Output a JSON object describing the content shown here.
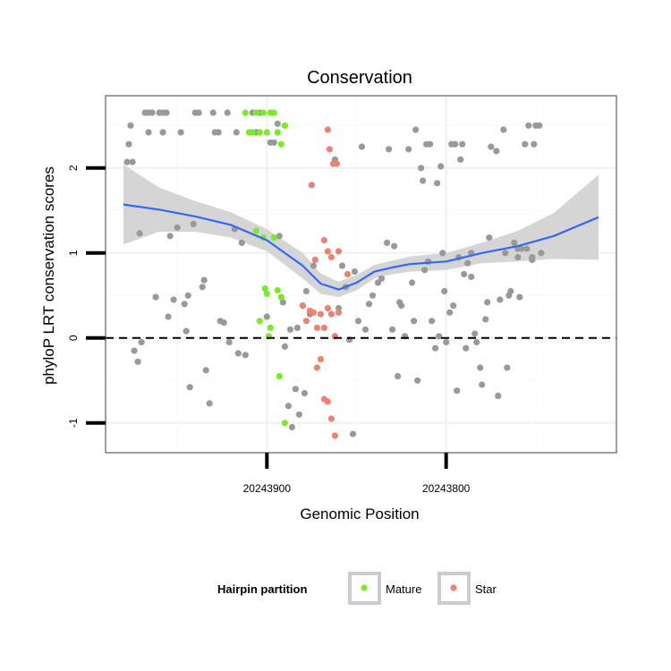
{
  "chart_data": {
    "type": "scatter",
    "title": "Conservation",
    "xlabel": "Genomic Position",
    "ylabel": "phyloP LRT conservation scores",
    "x_reversed": true,
    "xlim": [
      20243990,
      20243705
    ],
    "ylim": [
      -1.35,
      2.85
    ],
    "x_ticks": [
      {
        "value": 20243900,
        "label": "20243900"
      },
      {
        "value": 20243800,
        "label": "20243800"
      }
    ],
    "y_ticks": [
      {
        "value": -1,
        "label": "-1"
      },
      {
        "value": 0,
        "label": "0"
      },
      {
        "value": 1,
        "label": "1"
      },
      {
        "value": 2,
        "label": "2"
      }
    ],
    "grid": true,
    "reference_line": {
      "y": 0,
      "style": "dashed"
    },
    "legend": {
      "title": "Hairpin partition",
      "position": "bottom",
      "entries": [
        {
          "label": "Mature",
          "color": "#77ee22"
        },
        {
          "label": "Star",
          "color": "#f08070"
        }
      ]
    },
    "colors": {
      "other": "#999999",
      "smooth_line": "#3366ff",
      "ribbon": "#d3d3d3"
    },
    "series": [
      {
        "group": "other",
        "points": [
          [
            20243978,
            2.07
          ],
          [
            20243977,
            2.28
          ],
          [
            20243976,
            2.5
          ],
          [
            20243975,
            2.07
          ],
          [
            20243974,
            -0.15
          ],
          [
            20243972,
            -0.28
          ],
          [
            20243970,
            -0.05
          ],
          [
            20243971,
            1.23
          ],
          [
            20243968,
            2.65
          ],
          [
            20243966,
            2.65
          ],
          [
            20243966,
            2.42
          ],
          [
            20243964,
            2.65
          ],
          [
            20243962,
            0.48
          ],
          [
            20243960,
            2.65
          ],
          [
            20243958,
            2.65
          ],
          [
            20243958,
            2.42
          ],
          [
            20243956,
            2.65
          ],
          [
            20243955,
            0.25
          ],
          [
            20243954,
            1.2
          ],
          [
            20243952,
            0.45
          ],
          [
            20243950,
            1.3
          ],
          [
            20243948,
            2.42
          ],
          [
            20243946,
            0.4
          ],
          [
            20243945,
            0.08
          ],
          [
            20243944,
            0.5
          ],
          [
            20243943,
            -0.58
          ],
          [
            20243941,
            1.34
          ],
          [
            20243940,
            2.65
          ],
          [
            20243938,
            2.65
          ],
          [
            20243936,
            0.6
          ],
          [
            20243935,
            0.68
          ],
          [
            20243934,
            -0.38
          ],
          [
            20243932,
            -0.77
          ],
          [
            20243930,
            2.65
          ],
          [
            20243929,
            2.42
          ],
          [
            20243927,
            2.42
          ],
          [
            20243926,
            0.2
          ],
          [
            20243924,
            0.18
          ],
          [
            20243922,
            2.65
          ],
          [
            20243921,
            -0.05
          ],
          [
            20243918,
            1.28
          ],
          [
            20243917,
            2.42
          ],
          [
            20243916,
            -0.18
          ],
          [
            20243914,
            1.12
          ],
          [
            20243912,
            -0.2
          ],
          [
            20243908,
            2.65
          ],
          [
            20243906,
            2.42
          ],
          [
            20243904,
            2.65
          ],
          [
            20243900,
            0.25
          ],
          [
            20243898,
            2.3
          ],
          [
            20243896,
            2.3
          ],
          [
            20243894,
            2.52
          ],
          [
            20243893,
            1.2
          ],
          [
            20243891,
            0.42
          ],
          [
            20243890,
            -0.1
          ],
          [
            20243888,
            -0.8
          ],
          [
            20243887,
            0.1
          ],
          [
            20243886,
            -1.05
          ],
          [
            20243884,
            -0.6
          ],
          [
            20243883,
            0.12
          ],
          [
            20243882,
            -0.9
          ],
          [
            20243880,
            0.38
          ],
          [
            20243879,
            -0.65
          ],
          [
            20243878,
            0.55
          ],
          [
            20243876,
            0.28
          ],
          [
            20243874,
            0.85
          ],
          [
            20243862,
            2.1
          ],
          [
            20243860,
            0.35
          ],
          [
            20243858,
            0.85
          ],
          [
            20243856,
            0.6
          ],
          [
            20243854,
            -0.02
          ],
          [
            20243852,
            -1.13
          ],
          [
            20243851,
            0.78
          ],
          [
            20243849,
            0.2
          ],
          [
            20243847,
            2.25
          ],
          [
            20243845,
            0.1
          ],
          [
            20243843,
            0.4
          ],
          [
            20243841,
            0.5
          ],
          [
            20243838,
            0.65
          ],
          [
            20243836,
            0.7
          ],
          [
            20243833,
            1.12
          ],
          [
            20243832,
            2.22
          ],
          [
            20243830,
            0.1
          ],
          [
            20243829,
            1.08
          ],
          [
            20243827,
            -0.45
          ],
          [
            20243826,
            0.42
          ],
          [
            20243825,
            0.38
          ],
          [
            20243823,
            0.02
          ],
          [
            20243821,
            2.22
          ],
          [
            20243819,
            0.65
          ],
          [
            20243818,
            0.2
          ],
          [
            20243817,
            2.45
          ],
          [
            20243816,
            -0.5
          ],
          [
            20243814,
            2.0
          ],
          [
            20243813,
            1.85
          ],
          [
            20243812,
            0.8
          ],
          [
            20243811,
            2.28
          ],
          [
            20243810,
            0.9
          ],
          [
            20243809,
            2.28
          ],
          [
            20243808,
            0.2
          ],
          [
            20243806,
            -0.12
          ],
          [
            20243805,
            1.82
          ],
          [
            20243804,
            0.02
          ],
          [
            20243803,
            2.02
          ],
          [
            20243802,
            1.0
          ],
          [
            20243801,
            0.55
          ],
          [
            20243800,
            -0.05
          ],
          [
            20243798,
            0.3
          ],
          [
            20243797,
            2.28
          ],
          [
            20243796,
            0.38
          ],
          [
            20243795,
            2.28
          ],
          [
            20243794,
            -0.62
          ],
          [
            20243793,
            0.95
          ],
          [
            20243792,
            2.1
          ],
          [
            20243791,
            2.28
          ],
          [
            20243790,
            0.75
          ],
          [
            20243789,
            -0.12
          ],
          [
            20243788,
            0.88
          ],
          [
            20243786,
            0.72
          ],
          [
            20243784,
            0.05
          ],
          [
            20243783,
            -0.05
          ],
          [
            20243781,
            -0.35
          ],
          [
            20243780,
            -0.55
          ],
          [
            20243778,
            0.22
          ],
          [
            20243777,
            0.42
          ],
          [
            20243775,
            2.25
          ],
          [
            20243772,
            2.2
          ],
          [
            20243771,
            -0.68
          ],
          [
            20243770,
            0.45
          ],
          [
            20243768,
            2.45
          ],
          [
            20243766,
            -0.35
          ],
          [
            20243765,
            0.5
          ],
          [
            20243764,
            0.55
          ],
          [
            20243762,
            1.12
          ],
          [
            20243760,
            0.95
          ],
          [
            20243759,
            0.48
          ],
          [
            20243758,
            1.05
          ],
          [
            20243756,
            2.28
          ],
          [
            20243755,
            1.05
          ],
          [
            20243754,
            2.5
          ],
          [
            20243752,
            0.95
          ],
          [
            20243751,
            2.28
          ],
          [
            20243750,
            2.5
          ],
          [
            20243748,
            2.5
          ],
          [
            20243747,
            1.0
          ],
          [
            20243760,
            1.05
          ],
          [
            20243752,
            0.92
          ],
          [
            20243786,
            1.0
          ],
          [
            20243776,
            1.18
          ],
          [
            20243767,
            1.0
          ]
        ]
      },
      {
        "group": "Mature",
        "points": [
          [
            20243912,
            2.65
          ],
          [
            20243910,
            2.42
          ],
          [
            20243908,
            2.42
          ],
          [
            20243906,
            2.65
          ],
          [
            20243904,
            2.42
          ],
          [
            20243902,
            2.65
          ],
          [
            20243900,
            2.42
          ],
          [
            20243898,
            2.65
          ],
          [
            20243896,
            2.65
          ],
          [
            20243894,
            2.42
          ],
          [
            20243892,
            2.28
          ],
          [
            20243890,
            2.5
          ],
          [
            20243906,
            1.26
          ],
          [
            20243904,
            0.2
          ],
          [
            20243902,
            1.18
          ],
          [
            20243901,
            0.58
          ],
          [
            20243900,
            0.52
          ],
          [
            20243899,
            0.02
          ],
          [
            20243898,
            0.12
          ],
          [
            20243896,
            1.18
          ],
          [
            20243894,
            0.56
          ],
          [
            20243892,
            0.48
          ],
          [
            20243893,
            -0.45
          ],
          [
            20243890,
            -1.0
          ]
        ]
      },
      {
        "group": "Star",
        "points": [
          [
            20243866,
            2.45
          ],
          [
            20243865,
            2.22
          ],
          [
            20243863,
            2.05
          ],
          [
            20243861,
            2.05
          ],
          [
            20243875,
            1.8
          ],
          [
            20243868,
            1.15
          ],
          [
            20243866,
            1.02
          ],
          [
            20243864,
            0.95
          ],
          [
            20243860,
            1.02
          ],
          [
            20243855,
            0.75
          ],
          [
            20243880,
            0.38
          ],
          [
            20243878,
            0.2
          ],
          [
            20243876,
            0.32
          ],
          [
            20243874,
            0.3
          ],
          [
            20243872,
            0.12
          ],
          [
            20243870,
            0.28
          ],
          [
            20243868,
            0.12
          ],
          [
            20243866,
            0.35
          ],
          [
            20243864,
            0.28
          ],
          [
            20243862,
            0.02
          ],
          [
            20243860,
            0.3
          ],
          [
            20243872,
            -0.35
          ],
          [
            20243870,
            -0.25
          ],
          [
            20243868,
            -0.72
          ],
          [
            20243866,
            -0.75
          ],
          [
            20243864,
            -0.95
          ],
          [
            20243862,
            -1.15
          ],
          [
            20243873,
            0.92
          ]
        ]
      }
    ],
    "smooth": {
      "x": [
        20243980,
        20243960,
        20243940,
        20243920,
        20243900,
        20243880,
        20243870,
        20243860,
        20243850,
        20243840,
        20243830,
        20243820,
        20243800,
        20243780,
        20243760,
        20243740,
        20243715
      ],
      "y": [
        1.57,
        1.51,
        1.43,
        1.33,
        1.15,
        0.85,
        0.64,
        0.57,
        0.65,
        0.78,
        0.83,
        0.87,
        0.9,
        1.0,
        1.08,
        1.2,
        1.42
      ],
      "lower": [
        1.1,
        1.25,
        1.25,
        1.18,
        1.02,
        0.7,
        0.52,
        0.48,
        0.56,
        0.7,
        0.75,
        0.78,
        0.8,
        0.88,
        0.9,
        0.93,
        0.92
      ],
      "upper": [
        2.04,
        1.77,
        1.61,
        1.48,
        1.28,
        1.0,
        0.76,
        0.66,
        0.74,
        0.86,
        0.91,
        0.96,
        1.0,
        1.12,
        1.26,
        1.47,
        1.92
      ]
    }
  }
}
